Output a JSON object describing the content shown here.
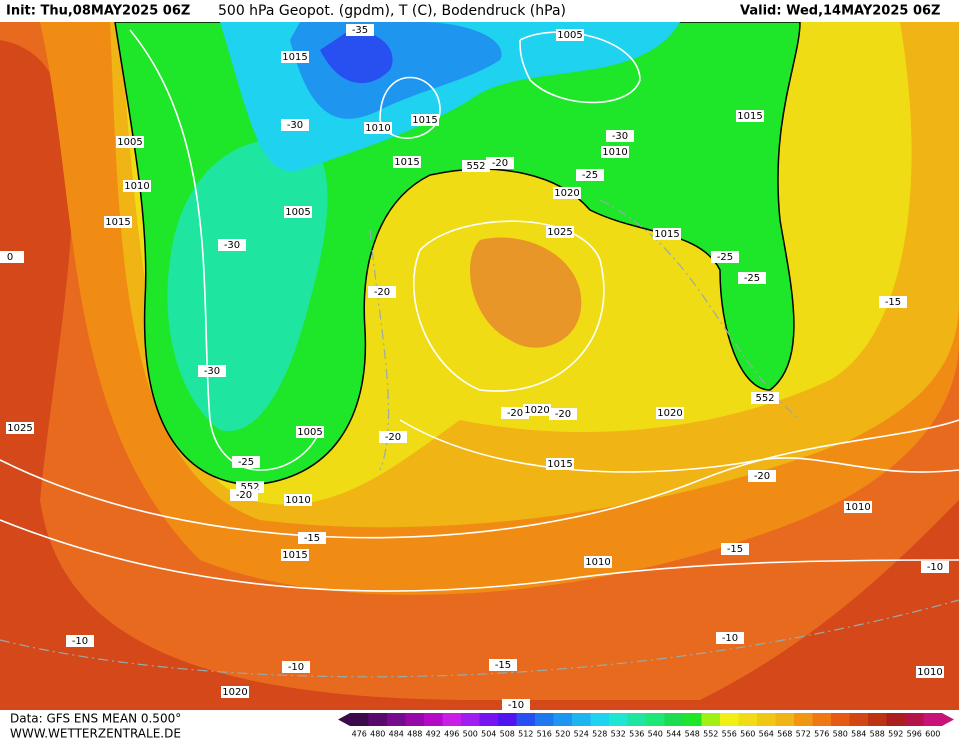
{
  "header": {
    "init": "Init: Thu,08MAY2025 06Z",
    "title": "500 hPa Geopot. (gpdm), T (C), Bodendruck (hPa)",
    "valid": "Valid: Wed,14MAY2025 06Z"
  },
  "map_labels": [
    "-35",
    "1005",
    "1015",
    "-30",
    "1010",
    "1015",
    "1005",
    "-30",
    "1010",
    "1015",
    "1015",
    "552",
    "-20",
    "-25",
    "1020",
    "1010",
    "1005",
    "1025",
    "1015",
    "1015",
    "-30",
    "-25",
    "-25",
    "0",
    "-20",
    "-15",
    "-30",
    "552",
    "-20",
    "1020",
    "-20",
    "1020",
    "1025",
    "1005",
    "-20",
    "-25",
    "1015",
    "-20",
    "552",
    "-20",
    "1010",
    "1010",
    "-15",
    "1015",
    "-15",
    "1010",
    "-10",
    "-10",
    "-10",
    "-10",
    "-15",
    "1010",
    "1020",
    "-10"
  ],
  "colorbar": {
    "ticks": [
      476,
      480,
      484,
      488,
      492,
      496,
      500,
      504,
      508,
      512,
      516,
      520,
      524,
      528,
      532,
      536,
      540,
      544,
      548,
      552,
      556,
      560,
      564,
      568,
      572,
      576,
      580,
      584,
      588,
      592,
      596,
      600
    ],
    "colors": [
      "#3c0a4a",
      "#5a0a6e",
      "#780a8c",
      "#960aaa",
      "#b40ac8",
      "#c81ee6",
      "#a01ef0",
      "#7814f0",
      "#5014f0",
      "#2850f0",
      "#1e78f0",
      "#1e96f0",
      "#1eb4f0",
      "#1ed2f0",
      "#1ee6d2",
      "#1ee6a0",
      "#1ee678",
      "#1edc50",
      "#1ee628",
      "#a0f014",
      "#f0f014",
      "#f0dc14",
      "#f0c814",
      "#f0b414",
      "#f09614",
      "#f07814",
      "#e65a14",
      "#d24614",
      "#be3214",
      "#aa1e1e",
      "#b4144a",
      "#c8147a"
    ]
  },
  "footer": {
    "data": "Data: GFS ENS MEAN 0.500°",
    "site": "WWW.WETTERZENTRALE.DE"
  }
}
